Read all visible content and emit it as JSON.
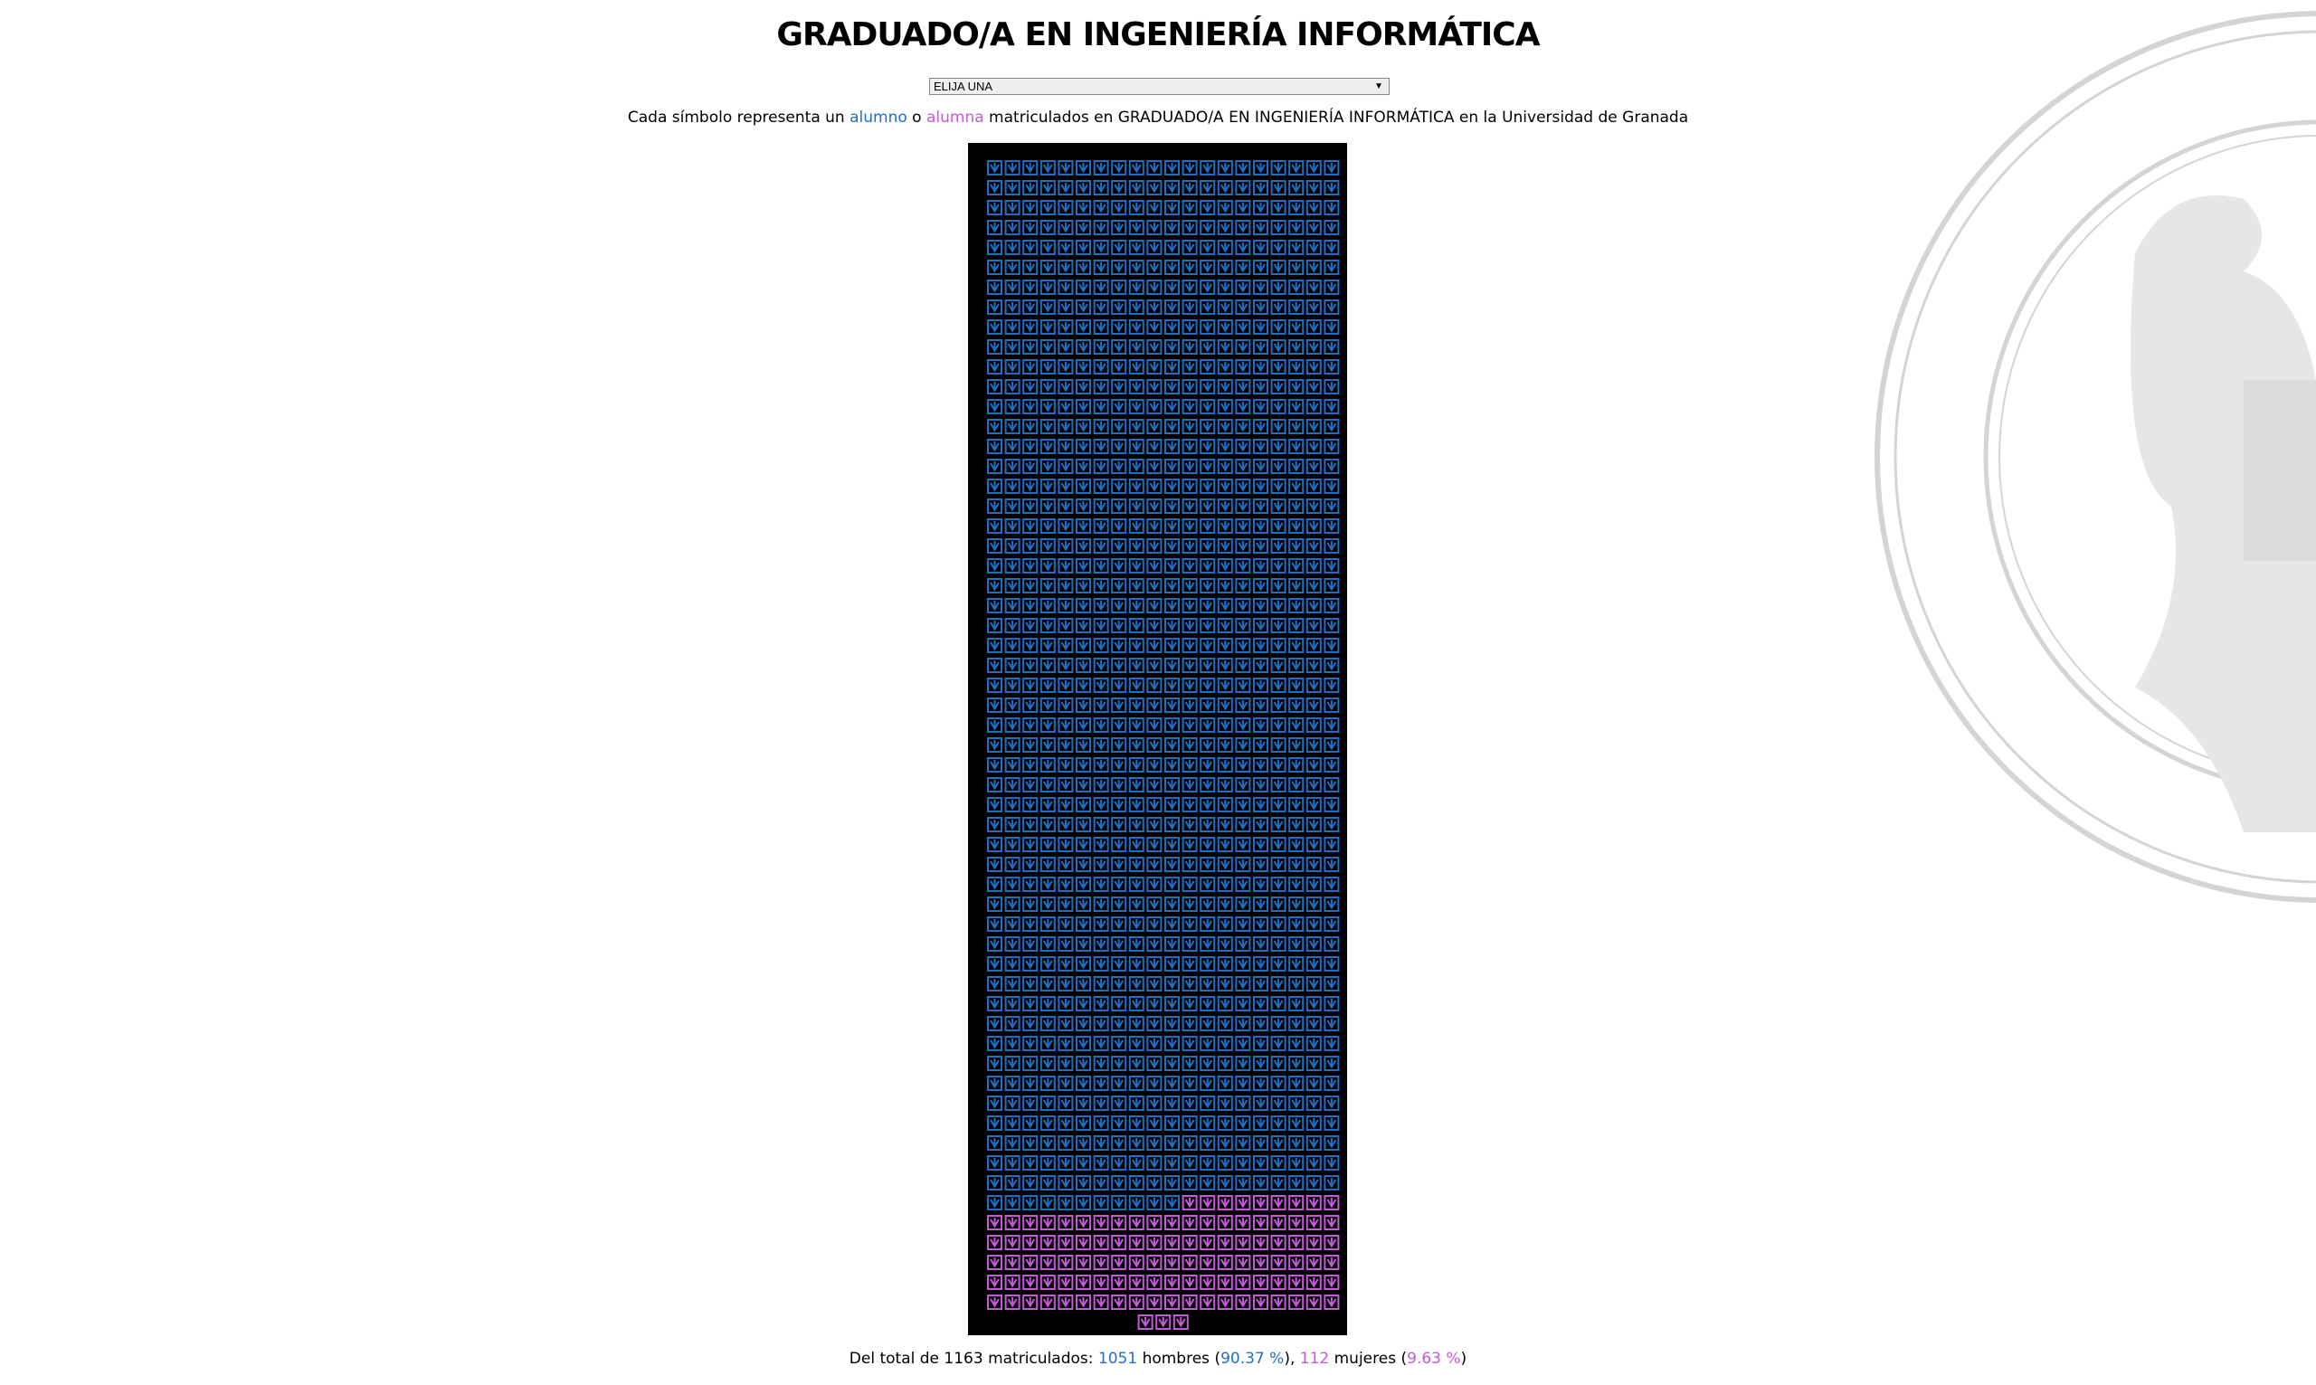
{
  "header": {
    "title": "GRADUADO/A EN INGENIERÍA INFORMÁTICA"
  },
  "selector": {
    "selected": "ELIJA UNA"
  },
  "description": {
    "lead": "Cada símbolo representa un",
    "male": "alumno",
    "joiner": "o",
    "female": "alumna",
    "tail": "matriculados en GRADUADO/A EN INGENIERÍA INFORMÁTICA en la Universidad de Granada"
  },
  "pictogram": {
    "columns": 20,
    "male_color": "#1f6fc5",
    "female_color": "#c45ad9",
    "background": "#000000"
  },
  "summary": {
    "intro": "Del total de",
    "total": 1163,
    "total_word": "matriculados:",
    "men": 1051,
    "men_word": "hombres",
    "men_pct": "90.37 %",
    "women": 112,
    "women_word": "mujeres",
    "women_pct": "9.63 %",
    "punctuation": [
      "(",
      "),",
      ")"
    ]
  }
}
